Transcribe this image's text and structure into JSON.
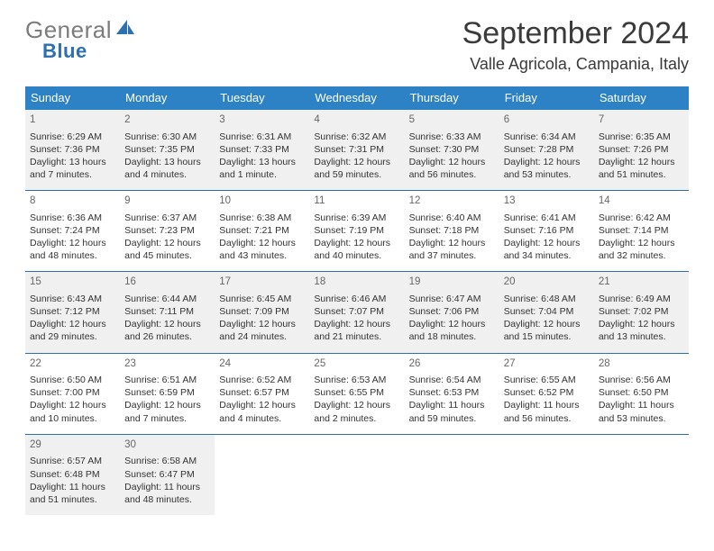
{
  "brand": {
    "part1": "General",
    "part2": "Blue",
    "accent": "#2d6fb3"
  },
  "header": {
    "title": "September 2024",
    "location": "Valle Agricola, Campania, Italy"
  },
  "colors": {
    "dow_bg": "#2d82c6",
    "dow_text": "#ffffff",
    "week_border": "#2d6fb3",
    "shaded_bg": "#f0f0f0",
    "text": "#333333",
    "muted": "#666666"
  },
  "dow": [
    "Sunday",
    "Monday",
    "Tuesday",
    "Wednesday",
    "Thursday",
    "Friday",
    "Saturday"
  ],
  "weeks": [
    {
      "shaded": true,
      "days": [
        {
          "num": "1",
          "sunrise": "Sunrise: 6:29 AM",
          "sunset": "Sunset: 7:36 PM",
          "daylight": "Daylight: 13 hours and 7 minutes."
        },
        {
          "num": "2",
          "sunrise": "Sunrise: 6:30 AM",
          "sunset": "Sunset: 7:35 PM",
          "daylight": "Daylight: 13 hours and 4 minutes."
        },
        {
          "num": "3",
          "sunrise": "Sunrise: 6:31 AM",
          "sunset": "Sunset: 7:33 PM",
          "daylight": "Daylight: 13 hours and 1 minute."
        },
        {
          "num": "4",
          "sunrise": "Sunrise: 6:32 AM",
          "sunset": "Sunset: 7:31 PM",
          "daylight": "Daylight: 12 hours and 59 minutes."
        },
        {
          "num": "5",
          "sunrise": "Sunrise: 6:33 AM",
          "sunset": "Sunset: 7:30 PM",
          "daylight": "Daylight: 12 hours and 56 minutes."
        },
        {
          "num": "6",
          "sunrise": "Sunrise: 6:34 AM",
          "sunset": "Sunset: 7:28 PM",
          "daylight": "Daylight: 12 hours and 53 minutes."
        },
        {
          "num": "7",
          "sunrise": "Sunrise: 6:35 AM",
          "sunset": "Sunset: 7:26 PM",
          "daylight": "Daylight: 12 hours and 51 minutes."
        }
      ]
    },
    {
      "shaded": false,
      "days": [
        {
          "num": "8",
          "sunrise": "Sunrise: 6:36 AM",
          "sunset": "Sunset: 7:24 PM",
          "daylight": "Daylight: 12 hours and 48 minutes."
        },
        {
          "num": "9",
          "sunrise": "Sunrise: 6:37 AM",
          "sunset": "Sunset: 7:23 PM",
          "daylight": "Daylight: 12 hours and 45 minutes."
        },
        {
          "num": "10",
          "sunrise": "Sunrise: 6:38 AM",
          "sunset": "Sunset: 7:21 PM",
          "daylight": "Daylight: 12 hours and 43 minutes."
        },
        {
          "num": "11",
          "sunrise": "Sunrise: 6:39 AM",
          "sunset": "Sunset: 7:19 PM",
          "daylight": "Daylight: 12 hours and 40 minutes."
        },
        {
          "num": "12",
          "sunrise": "Sunrise: 6:40 AM",
          "sunset": "Sunset: 7:18 PM",
          "daylight": "Daylight: 12 hours and 37 minutes."
        },
        {
          "num": "13",
          "sunrise": "Sunrise: 6:41 AM",
          "sunset": "Sunset: 7:16 PM",
          "daylight": "Daylight: 12 hours and 34 minutes."
        },
        {
          "num": "14",
          "sunrise": "Sunrise: 6:42 AM",
          "sunset": "Sunset: 7:14 PM",
          "daylight": "Daylight: 12 hours and 32 minutes."
        }
      ]
    },
    {
      "shaded": true,
      "days": [
        {
          "num": "15",
          "sunrise": "Sunrise: 6:43 AM",
          "sunset": "Sunset: 7:12 PM",
          "daylight": "Daylight: 12 hours and 29 minutes."
        },
        {
          "num": "16",
          "sunrise": "Sunrise: 6:44 AM",
          "sunset": "Sunset: 7:11 PM",
          "daylight": "Daylight: 12 hours and 26 minutes."
        },
        {
          "num": "17",
          "sunrise": "Sunrise: 6:45 AM",
          "sunset": "Sunset: 7:09 PM",
          "daylight": "Daylight: 12 hours and 24 minutes."
        },
        {
          "num": "18",
          "sunrise": "Sunrise: 6:46 AM",
          "sunset": "Sunset: 7:07 PM",
          "daylight": "Daylight: 12 hours and 21 minutes."
        },
        {
          "num": "19",
          "sunrise": "Sunrise: 6:47 AM",
          "sunset": "Sunset: 7:06 PM",
          "daylight": "Daylight: 12 hours and 18 minutes."
        },
        {
          "num": "20",
          "sunrise": "Sunrise: 6:48 AM",
          "sunset": "Sunset: 7:04 PM",
          "daylight": "Daylight: 12 hours and 15 minutes."
        },
        {
          "num": "21",
          "sunrise": "Sunrise: 6:49 AM",
          "sunset": "Sunset: 7:02 PM",
          "daylight": "Daylight: 12 hours and 13 minutes."
        }
      ]
    },
    {
      "shaded": false,
      "days": [
        {
          "num": "22",
          "sunrise": "Sunrise: 6:50 AM",
          "sunset": "Sunset: 7:00 PM",
          "daylight": "Daylight: 12 hours and 10 minutes."
        },
        {
          "num": "23",
          "sunrise": "Sunrise: 6:51 AM",
          "sunset": "Sunset: 6:59 PM",
          "daylight": "Daylight: 12 hours and 7 minutes."
        },
        {
          "num": "24",
          "sunrise": "Sunrise: 6:52 AM",
          "sunset": "Sunset: 6:57 PM",
          "daylight": "Daylight: 12 hours and 4 minutes."
        },
        {
          "num": "25",
          "sunrise": "Sunrise: 6:53 AM",
          "sunset": "Sunset: 6:55 PM",
          "daylight": "Daylight: 12 hours and 2 minutes."
        },
        {
          "num": "26",
          "sunrise": "Sunrise: 6:54 AM",
          "sunset": "Sunset: 6:53 PM",
          "daylight": "Daylight: 11 hours and 59 minutes."
        },
        {
          "num": "27",
          "sunrise": "Sunrise: 6:55 AM",
          "sunset": "Sunset: 6:52 PM",
          "daylight": "Daylight: 11 hours and 56 minutes."
        },
        {
          "num": "28",
          "sunrise": "Sunrise: 6:56 AM",
          "sunset": "Sunset: 6:50 PM",
          "daylight": "Daylight: 11 hours and 53 minutes."
        }
      ]
    },
    {
      "shaded": true,
      "days": [
        {
          "num": "29",
          "sunrise": "Sunrise: 6:57 AM",
          "sunset": "Sunset: 6:48 PM",
          "daylight": "Daylight: 11 hours and 51 minutes."
        },
        {
          "num": "30",
          "sunrise": "Sunrise: 6:58 AM",
          "sunset": "Sunset: 6:47 PM",
          "daylight": "Daylight: 11 hours and 48 minutes."
        },
        {
          "empty": true
        },
        {
          "empty": true
        },
        {
          "empty": true
        },
        {
          "empty": true
        },
        {
          "empty": true
        }
      ]
    }
  ]
}
